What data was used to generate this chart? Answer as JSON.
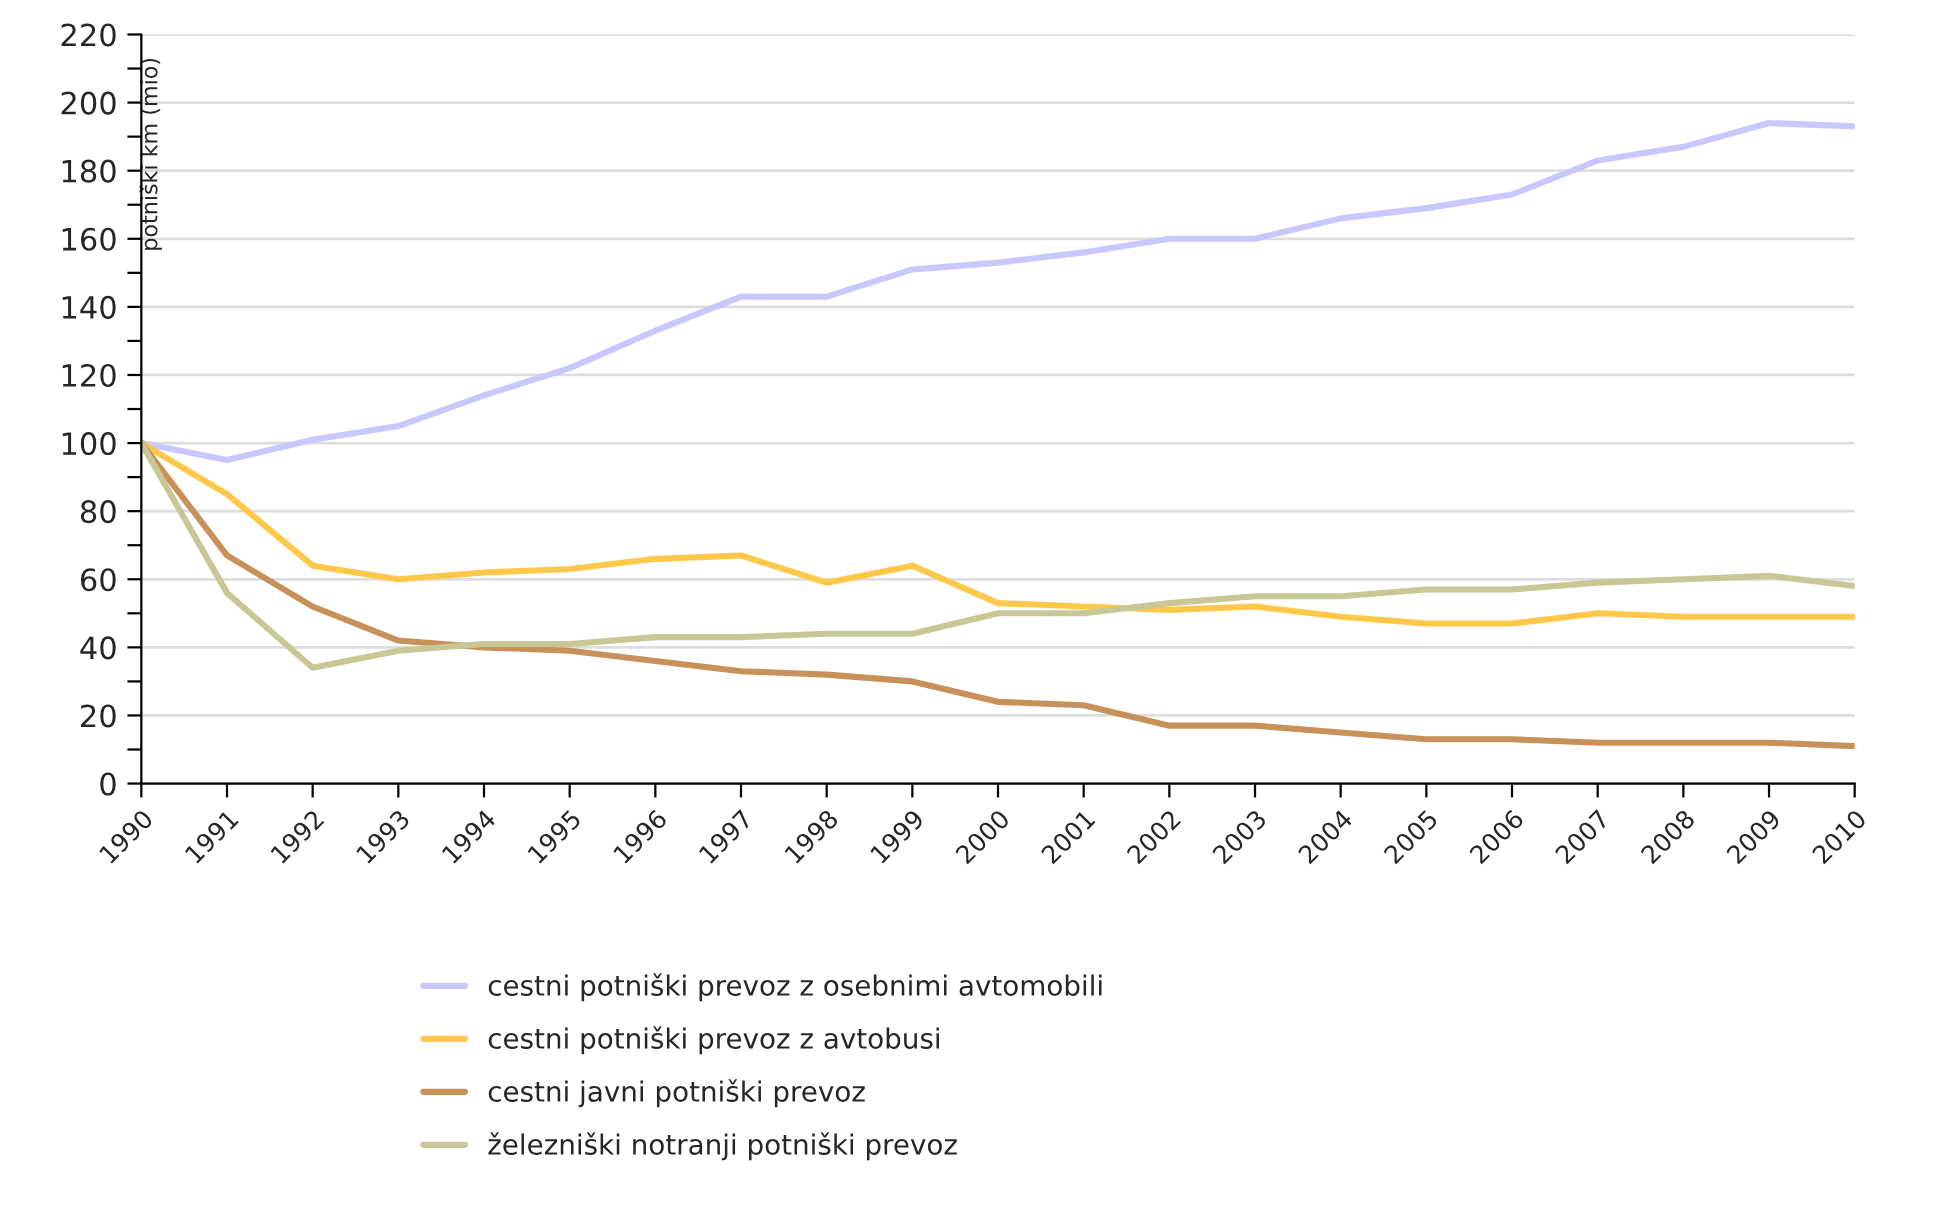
{
  "chart_data": {
    "type": "line",
    "ylabel": "potniški km (mio)",
    "x": [
      1990,
      1991,
      1992,
      1993,
      1994,
      1995,
      1996,
      1997,
      1998,
      1999,
      2000,
      2001,
      2002,
      2003,
      2004,
      2005,
      2006,
      2007,
      2008,
      2009,
      2010
    ],
    "xlim": [
      1990,
      2010
    ],
    "xticks": [
      1990,
      1991,
      1992,
      1993,
      1994,
      1995,
      1996,
      1997,
      1998,
      1999,
      2000,
      2001,
      2002,
      2003,
      2004,
      2005,
      2006,
      2007,
      2008,
      2009,
      2010
    ],
    "ylim": [
      0,
      220
    ],
    "yticks": [
      0,
      {
        "value": 10,
        "label": null
      },
      20,
      {
        "value": 30,
        "label": null
      },
      40,
      {
        "value": 50,
        "label": null
      },
      60,
      {
        "value": 70,
        "label": null
      },
      80,
      {
        "value": 90,
        "label": null
      },
      100,
      {
        "value": 110,
        "label": null
      },
      120,
      {
        "value": 130,
        "label": null
      },
      140,
      {
        "value": 150,
        "label": null
      },
      160,
      {
        "value": 170,
        "label": null
      },
      180,
      {
        "value": 190,
        "label": null
      },
      200,
      {
        "value": 210,
        "label": null
      },
      220
    ],
    "grid": "y",
    "legend": "bottom",
    "marker": "none",
    "line_style": "solid",
    "series": [
      {
        "name": "cestni potniški prevoz z osebnimi avtomobili",
        "color": "#c8c8ff",
        "values": [
          100,
          95,
          101,
          105,
          114,
          122,
          133,
          143,
          143,
          151,
          153,
          156,
          160,
          160,
          166,
          169,
          173,
          183,
          187,
          194,
          193
        ]
      },
      {
        "name": "cestni potniški prevoz z avtobusi",
        "color": "#ffc84b",
        "values": [
          100,
          85,
          64,
          60,
          62,
          63,
          66,
          67,
          59,
          64,
          53,
          52,
          51,
          52,
          49,
          47,
          47,
          50,
          49,
          49,
          49
        ]
      },
      {
        "name": "cestni javni potniški prevoz",
        "color": "#c8915a",
        "values": [
          100,
          67,
          52,
          42,
          40,
          39,
          36,
          33,
          32,
          30,
          24,
          23,
          17,
          17,
          15,
          13,
          13,
          12,
          12,
          12,
          11
        ]
      },
      {
        "name": "železniški notranji potniški prevoz",
        "color": "#c8c896",
        "values": [
          100,
          56,
          34,
          39,
          41,
          41,
          43,
          43,
          44,
          44,
          50,
          50,
          53,
          55,
          55,
          57,
          57,
          59,
          60,
          61,
          58
        ]
      }
    ]
  }
}
